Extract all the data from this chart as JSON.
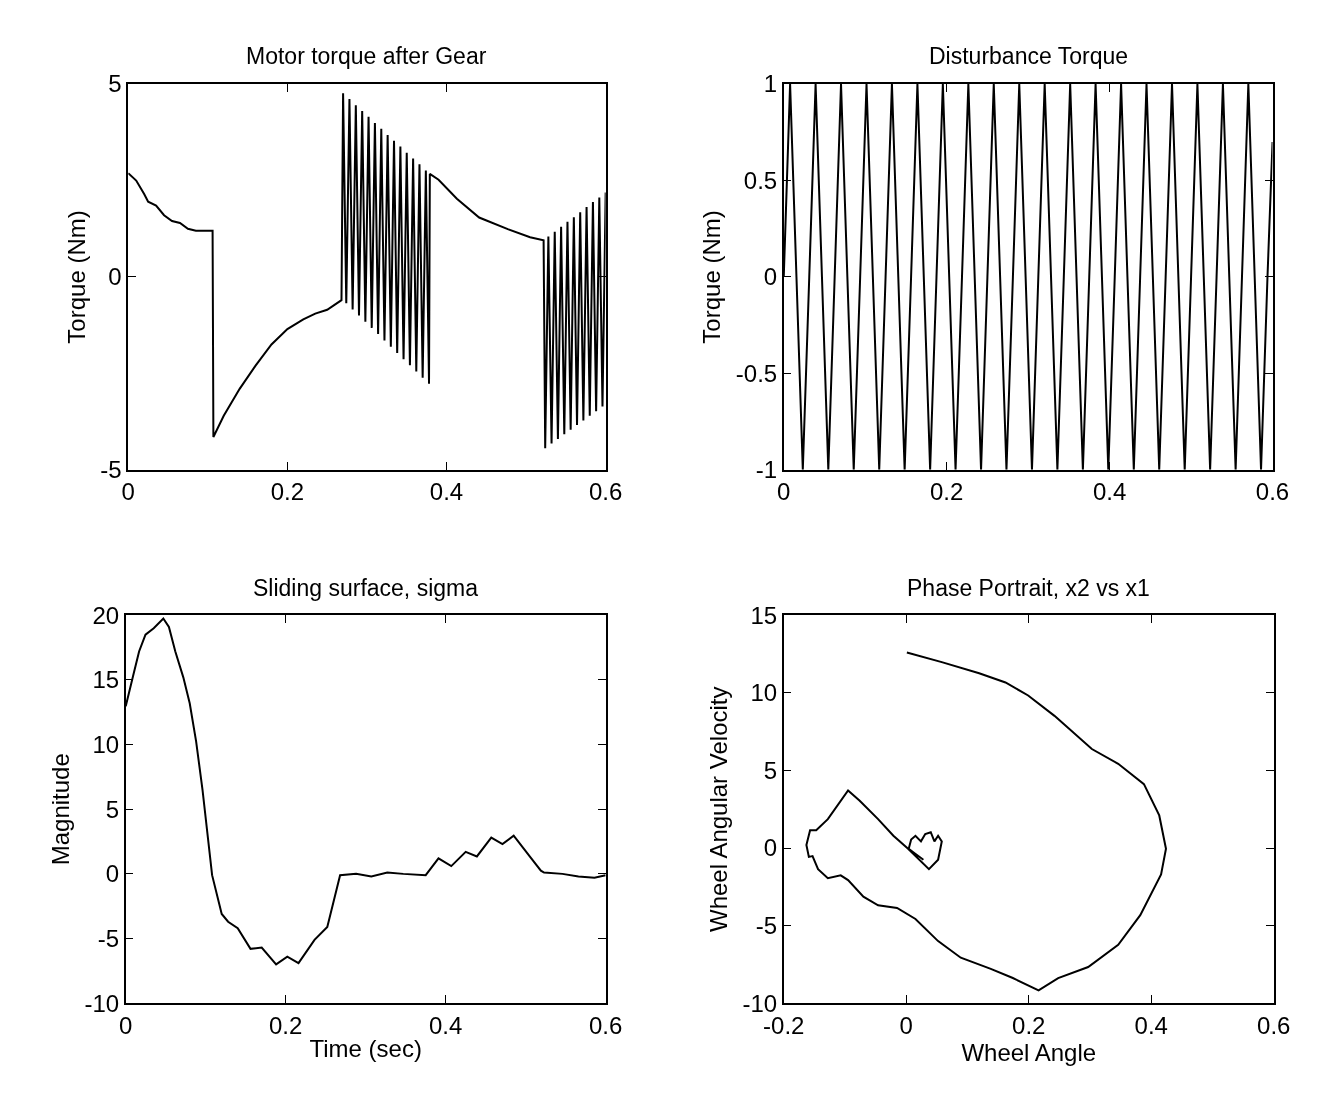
{
  "chart_data": [
    {
      "type": "line",
      "title": "Motor torque after Gear",
      "ylabel": "Torque (Nm)",
      "xlim": [
        0,
        0.6
      ],
      "ylim": [
        -5,
        5
      ],
      "xticks": [
        0,
        0.2,
        0.4,
        0.6
      ],
      "yticks": [
        -5,
        0,
        5
      ],
      "series": [
        {
          "color": "#000000",
          "x": [
            0,
            0.01,
            0.02,
            0.025,
            0.035,
            0.045,
            0.055,
            0.065,
            0.075,
            0.085,
            0.095,
            0.106,
            0.107,
            0.12,
            0.14,
            0.16,
            0.18,
            0.2,
            0.22,
            0.235,
            0.25,
            0.268,
            0.27,
            0.274,
            0.278,
            0.282,
            0.286,
            0.29,
            0.294,
            0.298,
            0.302,
            0.306,
            0.31,
            0.314,
            0.318,
            0.322,
            0.326,
            0.33,
            0.334,
            0.338,
            0.342,
            0.346,
            0.35,
            0.354,
            0.358,
            0.362,
            0.366,
            0.37,
            0.374,
            0.378,
            0.379,
            0.39,
            0.413,
            0.441,
            0.477,
            0.505,
            0.522,
            0.524,
            0.528,
            0.532,
            0.536,
            0.54,
            0.544,
            0.548,
            0.552,
            0.556,
            0.56,
            0.564,
            0.568,
            0.572,
            0.576,
            0.58,
            0.584,
            0.588,
            0.592,
            0.596,
            0.6
          ],
          "values": [
            2.69,
            2.5,
            2.15,
            1.95,
            1.85,
            1.6,
            1.45,
            1.4,
            1.25,
            1.2,
            1.2,
            1.2,
            -4.15,
            -3.6,
            -2.9,
            -2.3,
            -1.75,
            -1.35,
            -1.1,
            -0.95,
            -0.85,
            -0.6,
            4.76,
            -0.68,
            4.61,
            -0.84,
            4.45,
            -1.0,
            4.3,
            -1.16,
            4.15,
            -1.32,
            3.99,
            -1.48,
            3.84,
            -1.65,
            3.68,
            -1.81,
            3.53,
            -1.97,
            3.38,
            -2.13,
            3.22,
            -2.29,
            3.07,
            -2.45,
            2.92,
            -2.61,
            2.76,
            -2.77,
            2.67,
            2.52,
            2.03,
            1.54,
            1.24,
            1.03,
            0.95,
            -4.44,
            1.05,
            -4.32,
            1.17,
            -4.2,
            1.3,
            -4.08,
            1.43,
            -3.96,
            1.55,
            -3.84,
            1.68,
            -3.72,
            1.81,
            -3.6,
            1.94,
            -3.48,
            2.06,
            -3.36,
            2.19
          ]
        }
      ]
    },
    {
      "type": "line",
      "title": "Disturbance Torque",
      "ylabel": "Torque (Nm)",
      "xlim": [
        0,
        0.6
      ],
      "ylim": [
        -1,
        1
      ],
      "xticks": [
        0,
        0.2,
        0.4,
        0.6
      ],
      "yticks": [
        -1,
        -0.5,
        0,
        0.5,
        1
      ],
      "series": [
        {
          "color": "#000000",
          "x": [
            0,
            0.0078,
            0.0156,
            0.0234,
            0.0313,
            0.0391,
            0.0469,
            0.0547,
            0.0625,
            0.0703,
            0.0781,
            0.0859,
            0.0938,
            0.1016,
            0.1094,
            0.1172,
            0.125,
            0.1328,
            0.1406,
            0.1484,
            0.1563,
            0.1641,
            0.1719,
            0.1797,
            0.1875,
            0.1953,
            0.2031,
            0.2109,
            0.2188,
            0.2266,
            0.2344,
            0.2422,
            0.25,
            0.2578,
            0.2656,
            0.2734,
            0.2813,
            0.2891,
            0.2969,
            0.3047,
            0.3125,
            0.3203,
            0.3281,
            0.3359,
            0.3438,
            0.3516,
            0.3594,
            0.3672,
            0.375,
            0.3828,
            0.3906,
            0.3984,
            0.4063,
            0.4141,
            0.4219,
            0.4297,
            0.4375,
            0.4453,
            0.4531,
            0.4609,
            0.4688,
            0.4766,
            0.4844,
            0.4922,
            0.5,
            0.5078,
            0.5156,
            0.5234,
            0.5313,
            0.5391,
            0.5469,
            0.5547,
            0.5625,
            0.5703,
            0.5781,
            0.5859,
            0.5938,
            0.6
          ],
          "values": [
            0,
            1,
            0,
            -1,
            0,
            1,
            0,
            -1,
            0,
            1,
            0,
            -1,
            0,
            1,
            0,
            -1,
            0,
            1,
            0,
            -1,
            0,
            1,
            0,
            -1,
            0,
            1,
            0,
            -1,
            0,
            1,
            0,
            -1,
            0,
            1,
            0,
            -1,
            0,
            1,
            0,
            -1,
            0,
            1,
            0,
            -1,
            0,
            1,
            0,
            -1,
            0,
            1,
            0,
            -1,
            0,
            1,
            0,
            -1,
            0,
            1,
            0,
            -1,
            0,
            1,
            0,
            -1,
            0,
            1,
            0,
            -1,
            0,
            1,
            0,
            -1,
            0,
            1,
            0,
            -1,
            0,
            0.7
          ]
        }
      ]
    },
    {
      "type": "line",
      "title": "Sliding surface, sigma",
      "xlabel": "Time (sec)",
      "ylabel": "Magnitude",
      "xlim": [
        0,
        0.6
      ],
      "ylim": [
        -10,
        20
      ],
      "xticks": [
        0,
        0.2,
        0.4,
        0.6
      ],
      "yticks": [
        -10,
        -5,
        0,
        5,
        10,
        15,
        20
      ],
      "series": [
        {
          "color": "#000000",
          "x": [
            0,
            0.0088,
            0.0167,
            0.0247,
            0.035,
            0.047,
            0.054,
            0.062,
            0.072,
            0.08,
            0.088,
            0.096,
            0.108,
            0.12,
            0.128,
            0.14,
            0.156,
            0.17,
            0.188,
            0.202,
            0.216,
            0.236,
            0.252,
            0.268,
            0.288,
            0.307,
            0.327,
            0.347,
            0.375,
            0.391,
            0.407,
            0.425,
            0.439,
            0.457,
            0.471,
            0.485,
            0.507,
            0.519,
            0.523,
            0.546,
            0.566,
            0.586,
            0.6
          ],
          "values": [
            12.96,
            15.2,
            17.2,
            18.5,
            19.0,
            19.75,
            19.1,
            17.2,
            15.2,
            13.2,
            10.25,
            6.5,
            -0.1,
            -3.1,
            -3.7,
            -4.2,
            -5.8,
            -5.7,
            -7.0,
            -6.4,
            -6.9,
            -5.1,
            -4.1,
            -0.1,
            0,
            -0.2,
            0.1,
            0,
            -0.1,
            1.2,
            0.6,
            1.7,
            1.35,
            2.8,
            2.3,
            2.95,
            1.2,
            0.25,
            0.1,
            0,
            -0.2,
            -0.3,
            -0.1
          ]
        }
      ]
    },
    {
      "type": "line",
      "title": "Phase Portrait, x2 vs x1",
      "xlabel": "Wheel Angle",
      "ylabel": "Wheel Angular Velocity",
      "xlim": [
        -0.2,
        0.6
      ],
      "ylim": [
        -10,
        15
      ],
      "xticks": [
        -0.2,
        0,
        0.2,
        0.4,
        0.6
      ],
      "yticks": [
        -10,
        -5,
        0,
        5,
        10,
        15
      ],
      "series": [
        {
          "color": "#000000",
          "x": [
            0.001,
            0.058,
            0.119,
            0.162,
            0.199,
            0.242,
            0.303,
            0.346,
            0.388,
            0.413,
            0.424,
            0.416,
            0.382,
            0.346,
            0.297,
            0.248,
            0.216,
            0.174,
            0.138,
            0.089,
            0.052,
            0.015,
            -0.015,
            -0.046,
            -0.07,
            -0.095,
            -0.107,
            -0.128,
            -0.144,
            -0.153,
            -0.159,
            -0.163,
            -0.157,
            -0.147,
            -0.128,
            -0.095,
            -0.076,
            -0.046,
            -0.021,
            0.003,
            0.037,
            0.052,
            0.058,
            0.052,
            0.046,
            0.04,
            0.031,
            0.024,
            0.015,
            0.008,
            0.004,
            0.012,
            0.028
          ],
          "values": [
            12.6,
            11.98,
            11.26,
            10.67,
            9.83,
            8.52,
            6.38,
            5.43,
            4.12,
            2.1,
            -0.05,
            -1.71,
            -4.33,
            -6.24,
            -7.67,
            -8.38,
            -9.17,
            -8.38,
            -7.79,
            -7.07,
            -6.0,
            -4.57,
            -3.86,
            -3.69,
            -3.14,
            -2.07,
            -1.76,
            -1.95,
            -1.36,
            -0.52,
            -0.57,
            0.19,
            1.14,
            1.14,
            1.86,
            3.71,
            3.05,
            1.86,
            0.79,
            -0.05,
            -1.36,
            -0.76,
            0.43,
            0.79,
            0.43,
            1.02,
            0.9,
            0.43,
            0.79,
            0.55,
            -0.05,
            -0.29,
            -0.76
          ]
        }
      ]
    }
  ]
}
